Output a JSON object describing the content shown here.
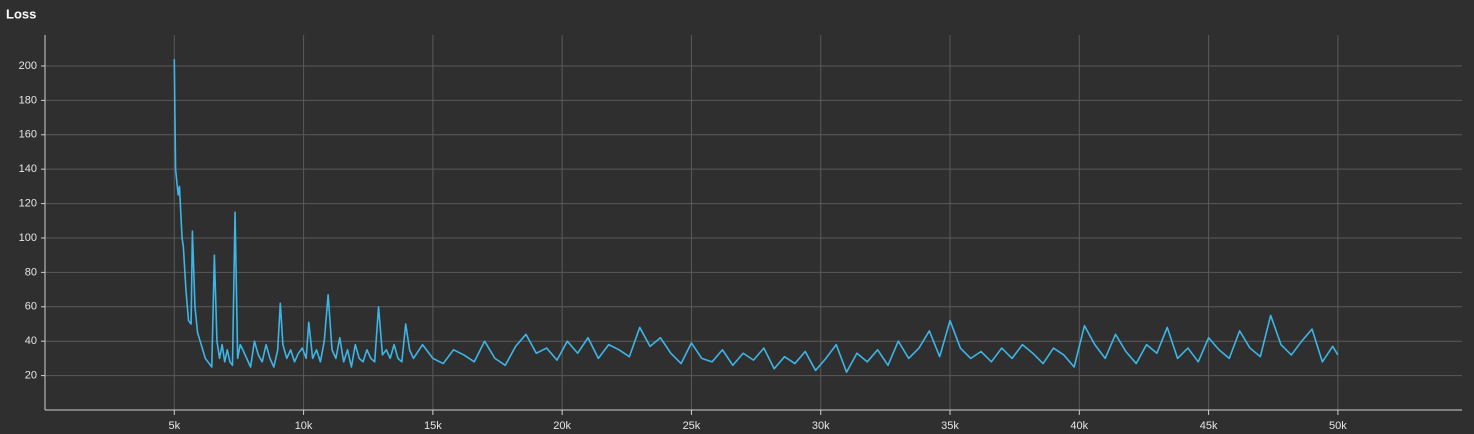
{
  "chart_data": {
    "type": "line",
    "title": "Loss",
    "xlim": [
      0,
      54800
    ],
    "ylim": [
      0,
      218
    ],
    "xticks": [
      {
        "value": 5000,
        "label": "5k"
      },
      {
        "value": 10000,
        "label": "10k"
      },
      {
        "value": 15000,
        "label": "15k"
      },
      {
        "value": 20000,
        "label": "20k"
      },
      {
        "value": 25000,
        "label": "25k"
      },
      {
        "value": 30000,
        "label": "30k"
      },
      {
        "value": 35000,
        "label": "35k"
      },
      {
        "value": 40000,
        "label": "40k"
      },
      {
        "value": 45000,
        "label": "45k"
      },
      {
        "value": 50000,
        "label": "50k"
      }
    ],
    "yticks": [
      20,
      40,
      60,
      80,
      100,
      120,
      140,
      160,
      180,
      200
    ],
    "grid": true,
    "x": [
      5000,
      5050,
      5150,
      5200,
      5300,
      5350,
      5450,
      5550,
      5650,
      5700,
      5800,
      5900,
      6000,
      6100,
      6200,
      6300,
      6450,
      6550,
      6650,
      6750,
      6850,
      6950,
      7050,
      7150,
      7250,
      7350,
      7450,
      7550,
      7650,
      7800,
      7950,
      8100,
      8250,
      8400,
      8550,
      8700,
      8850,
      9000,
      9100,
      9200,
      9350,
      9500,
      9650,
      9800,
      9950,
      10100,
      10200,
      10350,
      10500,
      10650,
      10800,
      10950,
      11100,
      11250,
      11400,
      11550,
      11700,
      11850,
      12000,
      12150,
      12300,
      12450,
      12600,
      12750,
      12900,
      13050,
      13200,
      13350,
      13500,
      13650,
      13800,
      13950,
      14100,
      14250,
      14600,
      15000,
      15400,
      15800,
      16200,
      16600,
      17000,
      17400,
      17800,
      18200,
      18600,
      19000,
      19400,
      19800,
      20200,
      20600,
      21000,
      21400,
      21800,
      22200,
      22600,
      23000,
      23400,
      23800,
      24200,
      24600,
      25000,
      25400,
      25800,
      26200,
      26600,
      27000,
      27400,
      27800,
      28200,
      28600,
      29000,
      29400,
      29800,
      30200,
      30600,
      31000,
      31400,
      31800,
      32200,
      32600,
      33000,
      33400,
      33800,
      34200,
      34600,
      35000,
      35400,
      35800,
      36200,
      36600,
      37000,
      37400,
      37800,
      38200,
      38600,
      39000,
      39400,
      39800,
      40200,
      40600,
      41000,
      41400,
      41800,
      42200,
      42600,
      43000,
      43400,
      43800,
      44200,
      44600,
      45000,
      45400,
      45800,
      46200,
      46600,
      47000,
      47400,
      47800,
      48200,
      48600,
      49000,
      49400,
      49800,
      50000
    ],
    "series": [
      {
        "color": "#3db5e6",
        "values": [
          204,
          140,
          125,
          130,
          100,
          95,
          70,
          52,
          50,
          104,
          60,
          45,
          40,
          35,
          30,
          28,
          25,
          90,
          40,
          30,
          38,
          28,
          35,
          28,
          26,
          115,
          30,
          38,
          35,
          30,
          25,
          40,
          32,
          28,
          38,
          30,
          25,
          35,
          62,
          38,
          30,
          35,
          28,
          33,
          36,
          30,
          51,
          30,
          35,
          28,
          40,
          67,
          35,
          30,
          42,
          28,
          35,
          25,
          38,
          30,
          28,
          35,
          30,
          28,
          60,
          32,
          35,
          30,
          38,
          30,
          28,
          50,
          35,
          30,
          38,
          30,
          27,
          35,
          32,
          28,
          40,
          30,
          26,
          37,
          44,
          33,
          36,
          29,
          40,
          33,
          42,
          30,
          38,
          35,
          31,
          48,
          37,
          42,
          33,
          27,
          39,
          30,
          28,
          35,
          26,
          33,
          29,
          36,
          24,
          31,
          27,
          34,
          23,
          30,
          38,
          22,
          33,
          28,
          35,
          26,
          40,
          30,
          36,
          46,
          31,
          52,
          36,
          30,
          34,
          28,
          36,
          30,
          38,
          33,
          27,
          36,
          32,
          25,
          49,
          38,
          30,
          44,
          34,
          27,
          38,
          33,
          48,
          30,
          36,
          28,
          42,
          35,
          30,
          46,
          36,
          31,
          55,
          38,
          32,
          40,
          47,
          28,
          37,
          32
        ]
      }
    ]
  }
}
